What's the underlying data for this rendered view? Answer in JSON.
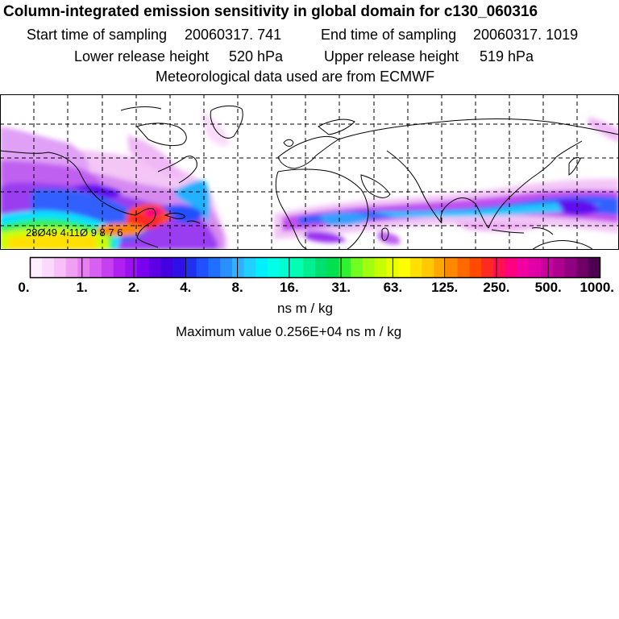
{
  "header": {
    "title": "Column-integrated emission sensitivity in global domain for c130_060316",
    "start_label": "Start time of sampling",
    "start_value": "20060317.   741",
    "end_label": "End time of sampling",
    "end_value": "20060317.  1019",
    "lower_label": "Lower release height",
    "lower_value": "520 hPa",
    "upper_label": "Upper release height",
    "upper_value": "519 hPa",
    "met_line": "Meteorological data used are from ECMWF"
  },
  "map": {
    "track_labels": "28Ø49 4 11Ø 9 8 7 6"
  },
  "colorbar": {
    "labels": [
      "0.",
      "1.",
      "2.",
      "4.",
      "8.",
      "16.",
      "31.",
      "63.",
      "125.",
      "250.",
      "500.",
      "1000."
    ],
    "colors": [
      "#ffeefe",
      "#fcd8fc",
      "#f8bff8",
      "#f0a0f0",
      "#e680f0",
      "#d860f0",
      "#c640f0",
      "#b020f0",
      "#9a10f0",
      "#7a00f0",
      "#5e00e6",
      "#4400e0",
      "#3010e8",
      "#2030f0",
      "#2050ff",
      "#2070ff",
      "#2890ff",
      "#30b0ff",
      "#20d0ff",
      "#00f0ff",
      "#00ffe8",
      "#00ffd0",
      "#00ffb0",
      "#00f090",
      "#00e070",
      "#00e050",
      "#30f030",
      "#70ff20",
      "#a0ff10",
      "#c8ff00",
      "#e8ff00",
      "#ffff00",
      "#ffe000",
      "#ffc800",
      "#ffa800",
      "#ff8800",
      "#ff6a00",
      "#ff4a00",
      "#ff2a20",
      "#ff1050",
      "#ff0080",
      "#f000a0",
      "#e000a8",
      "#cc00a0",
      "#b00090",
      "#900080",
      "#700068",
      "#500050"
    ],
    "units": "ns m / kg"
  },
  "footer": {
    "max_line": "Maximum value  0.256E+04 ns m / kg"
  }
}
